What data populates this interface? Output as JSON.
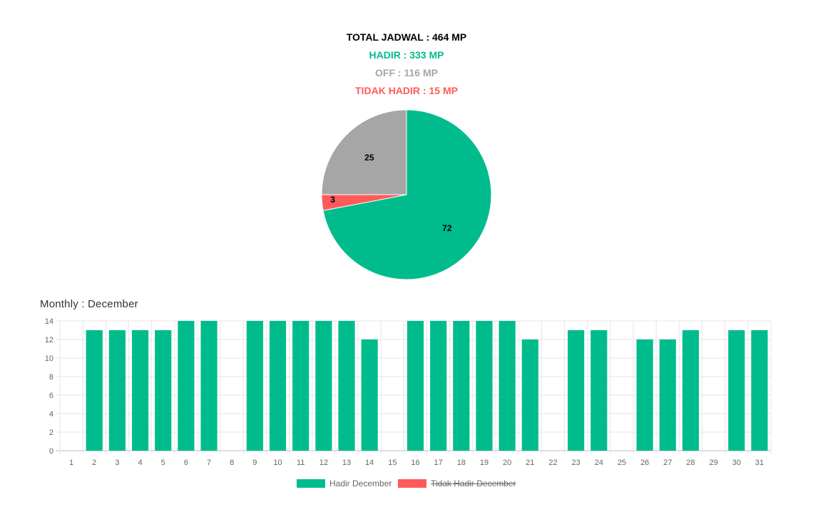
{
  "summary": {
    "total": "TOTAL JADWAL : 464 MP",
    "hadir": "HADIR : 333 MP",
    "off": "OFF : 116 MP",
    "tidak_hadir": "TIDAK HADIR : 15 MP"
  },
  "colors": {
    "hadir": "#00BC8C",
    "off": "#A6A6A6",
    "tidak_hadir": "#FF5A5A",
    "text_total": "#000000"
  },
  "monthly_title": "Monthly : December",
  "legend": {
    "hadir": "Hadir December",
    "tidak_hadir": "Tidak Hadir December",
    "tidak_hadir_hidden": true
  },
  "chart_data": [
    {
      "type": "pie",
      "slices": [
        {
          "key": "hadir",
          "value": 72,
          "label": "72"
        },
        {
          "key": "tidak_hadir",
          "value": 3,
          "label": "3"
        },
        {
          "key": "off",
          "value": 25,
          "label": "25"
        }
      ]
    },
    {
      "type": "bar",
      "categories": [
        "1",
        "2",
        "3",
        "4",
        "5",
        "6",
        "7",
        "8",
        "9",
        "10",
        "11",
        "12",
        "13",
        "14",
        "15",
        "16",
        "17",
        "18",
        "19",
        "20",
        "21",
        "22",
        "23",
        "24",
        "25",
        "26",
        "27",
        "28",
        "29",
        "30",
        "31"
      ],
      "series": [
        {
          "name": "Hadir December",
          "values": [
            0,
            13,
            13,
            13,
            13,
            14,
            14,
            0,
            14,
            14,
            14,
            14,
            14,
            12,
            0,
            14,
            14,
            14,
            14,
            14,
            12,
            0,
            13,
            13,
            0,
            12,
            12,
            13,
            0,
            13,
            13
          ]
        }
      ],
      "ylim": [
        0,
        14
      ],
      "yticks": [
        0,
        2,
        4,
        6,
        8,
        10,
        12,
        14
      ],
      "grid": true,
      "legend_position": "bottom"
    }
  ]
}
